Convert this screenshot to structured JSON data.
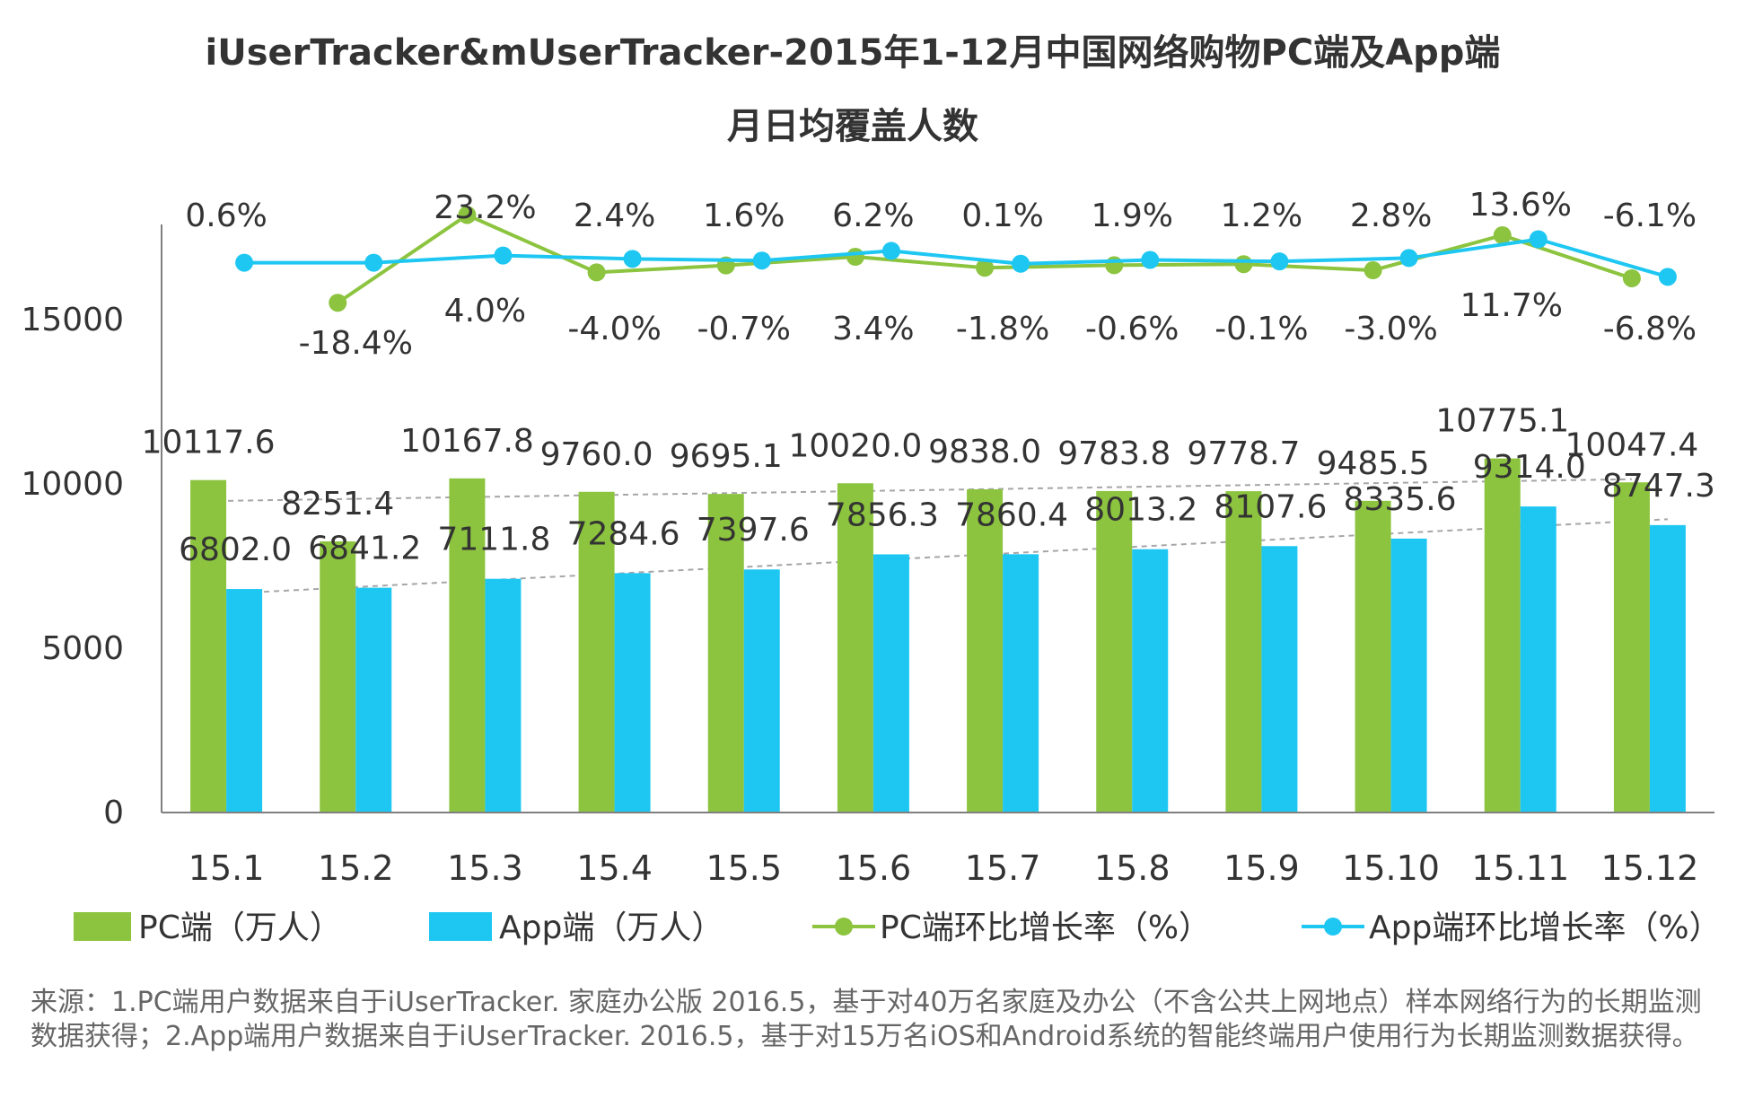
{
  "colors": {
    "pc": "#8cc43f",
    "app": "#1ec7f2",
    "trend": "#a6a6a6",
    "axis": "#7f7f7f"
  },
  "chart_data": {
    "type": "bar",
    "title_line1": "iUserTracker&mUserTracker-2015年1-12月中国网络购物PC端及App端",
    "title_line2": "月日均覆盖人数",
    "categories": [
      "15.1",
      "15.2",
      "15.3",
      "15.4",
      "15.5",
      "15.6",
      "15.7",
      "15.8",
      "15.9",
      "15.10",
      "15.11",
      "15.12"
    ],
    "y_ticks": [
      "0",
      "5000",
      "10000",
      "15000"
    ],
    "ylim": [
      0,
      18000
    ],
    "series": [
      {
        "name": "PC端（万人）",
        "type": "bar",
        "values": [
          10117.6,
          8251.4,
          10167.8,
          9760.0,
          9695.1,
          10020.0,
          9838.0,
          9783.8,
          9778.7,
          9485.5,
          10775.1,
          10047.4
        ],
        "labels": [
          "10117.6",
          "8251.4",
          "10167.8",
          "9760.0",
          "9695.1",
          "10020.0",
          "9838.0",
          "9783.8",
          "9778.7",
          "9485.5",
          "10775.1",
          "10047.4"
        ]
      },
      {
        "name": "App端（万人）",
        "type": "bar",
        "values": [
          6802.0,
          6841.2,
          7111.8,
          7284.6,
          7397.6,
          7856.3,
          7860.4,
          8013.2,
          8107.6,
          8335.6,
          9314.0,
          8747.3
        ],
        "labels": [
          "6802.0",
          "6841.2",
          "7111.8",
          "7284.6",
          "7397.6",
          "7856.3",
          "7860.4",
          "8013.2",
          "8107.6",
          "8335.6",
          "9314.0",
          "8747.3"
        ]
      },
      {
        "name": "PC端环比增长率（%）",
        "type": "line",
        "values": [
          null,
          -18.4,
          23.2,
          -4.0,
          -0.7,
          3.4,
          -1.8,
          -0.6,
          -0.1,
          -3.0,
          13.6,
          -6.8
        ],
        "labels": [
          "",
          "-18.4%",
          "23.2%",
          "-4.0%",
          "-0.7%",
          "3.4%",
          "-1.8%",
          "-0.6%",
          "-0.1%",
          "-3.0%",
          "13.6%",
          "-6.8%"
        ]
      },
      {
        "name": "App端环比增长率（%）",
        "type": "line",
        "values": [
          0.6,
          0.6,
          4.0,
          2.4,
          1.6,
          6.2,
          0.1,
          1.9,
          1.2,
          2.8,
          11.7,
          -6.1
        ],
        "labels": [
          "0.6%",
          "",
          "4.0%",
          "2.4%",
          "1.6%",
          "6.2%",
          "0.1%",
          "1.9%",
          "1.2%",
          "2.8%",
          "11.7%",
          "-6.1%"
        ]
      }
    ],
    "legend_position": "bottom",
    "grid": false
  },
  "note": "来源：1.PC端用户数据来自于iUserTracker. 家庭办公版 2016.5，基于对40万名家庭及办公（不含公共上网地点）样本网络行为的长期监测数据获得；2.App端用户数据来自于iUserTracker. 2016.5，基于对15万名iOS和Android系统的智能终端用户使用行为长期监测数据获得。"
}
